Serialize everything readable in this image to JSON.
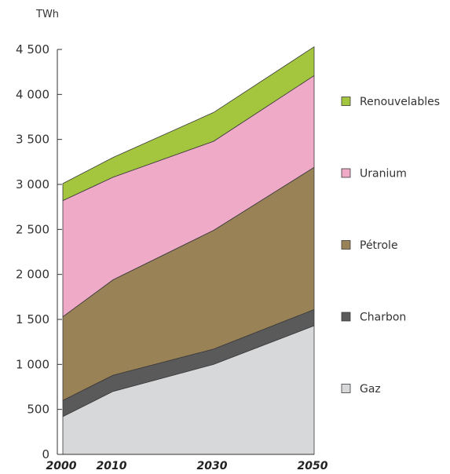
{
  "chart_data": {
    "type": "area",
    "stacked": true,
    "unit": "TWh",
    "x": [
      "2000",
      "2010",
      "2030",
      "2050"
    ],
    "x_numeric": [
      2000,
      2010,
      2030,
      2050
    ],
    "ylim": [
      0,
      4500
    ],
    "yticks": [
      0,
      500,
      1000,
      1500,
      2000,
      2500,
      3000,
      3500,
      4000,
      4500
    ],
    "ytick_labels": [
      "0",
      "500",
      "1 000",
      "1 500",
      "2 000",
      "2 500",
      "3 000",
      "3 500",
      "4 000",
      "4 500"
    ],
    "grid": false,
    "legend_position": "right",
    "series": [
      {
        "name": "Gaz",
        "color": "#d7d8da",
        "values": [
          420,
          700,
          1000,
          1430
        ]
      },
      {
        "name": "Charbon",
        "color": "#5a5a5b",
        "values": [
          180,
          180,
          170,
          180
        ]
      },
      {
        "name": "Pétrole",
        "color": "#9a8257",
        "values": [
          930,
          1060,
          1320,
          1580
        ]
      },
      {
        "name": "Uranium",
        "color": "#efaac8",
        "values": [
          1290,
          1140,
          990,
          1020
        ]
      },
      {
        "name": "Renouvelables",
        "color": "#a4c63e",
        "values": [
          190,
          220,
          320,
          320
        ]
      }
    ]
  }
}
